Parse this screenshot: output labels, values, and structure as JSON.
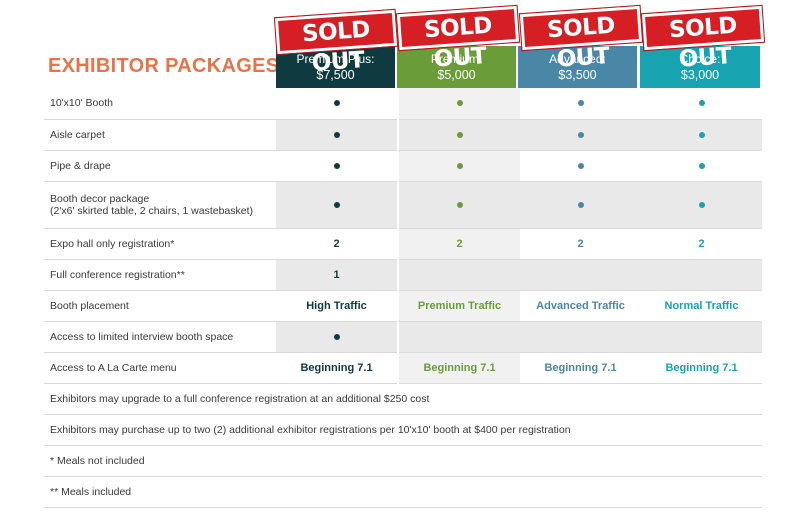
{
  "title": "EXHIBITOR PACKAGES",
  "stamp_text": "SOLD OUT",
  "packages": [
    {
      "name": "Premium Plus:",
      "price": "$7,500",
      "color": "#0e3a40"
    },
    {
      "name": "Premium:",
      "price": "$5,000",
      "color": "#6a9c3a"
    },
    {
      "name": "Advanced:",
      "price": "$3,500",
      "color": "#4a87a6"
    },
    {
      "name": "Choice:",
      "price": "$3,000",
      "color": "#17a3b0"
    }
  ],
  "rows": [
    {
      "label": "10'x10' Booth",
      "values": [
        "dot",
        "dot",
        "dot",
        "dot"
      ]
    },
    {
      "label": "Aisle carpet",
      "values": [
        "dot",
        "dot",
        "dot",
        "dot"
      ]
    },
    {
      "label": "Pipe & drape",
      "values": [
        "dot",
        "dot",
        "dot",
        "dot"
      ]
    },
    {
      "label": "Booth decor package",
      "label2": "(2'x6' skirted table, 2 chairs, 1 wastebasket)",
      "values": [
        "dot",
        "dot",
        "dot",
        "dot"
      ]
    },
    {
      "label": "Expo hall only registration*",
      "values": [
        "2",
        "2",
        "2",
        "2"
      ]
    },
    {
      "label": "Full conference registration**",
      "values": [
        "1",
        "",
        "",
        ""
      ]
    },
    {
      "label": "Booth placement",
      "values": [
        "High Traffic",
        "Premium Traffic",
        "Advanced Traffic",
        "Normal Traffic"
      ]
    },
    {
      "label": "Access to limited interview booth space",
      "values": [
        "dot",
        "",
        "",
        ""
      ]
    },
    {
      "label": "Access to A La Carte menu",
      "values": [
        "Beginning 7.1",
        "Beginning 7.1",
        "Beginning 7.1",
        "Beginning 7.1"
      ]
    }
  ],
  "notes": [
    "Exhibitors may upgrade to a full conference registration at an additional $250 cost",
    "Exhibitors may purchase up to two (2) additional exhibitor registrations per 10'x10' booth at $400 per registration",
    "* Meals not included",
    "** Meals included"
  ]
}
